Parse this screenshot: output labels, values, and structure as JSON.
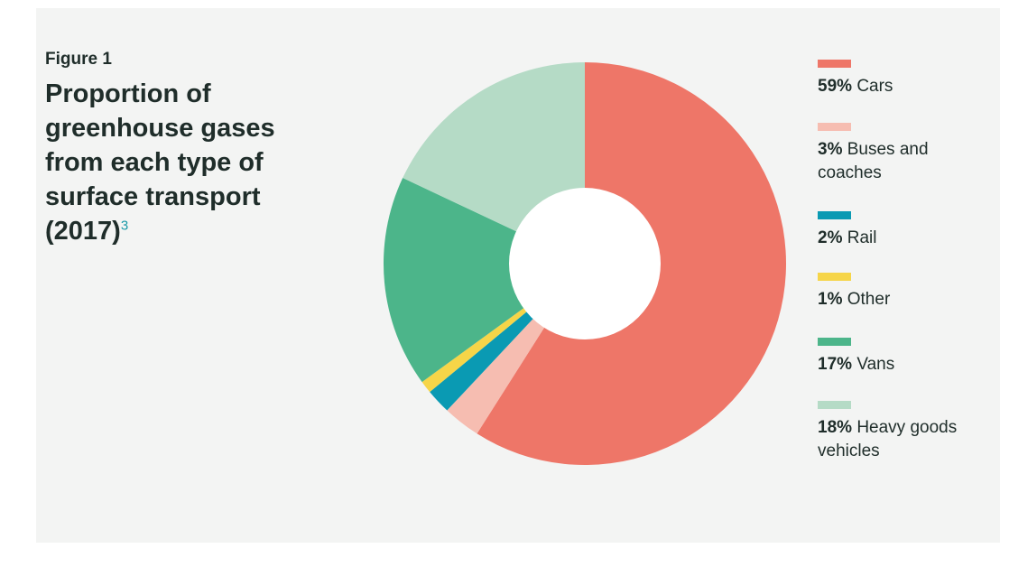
{
  "figure": {
    "label": "Figure 1",
    "title": "Proportion of greenhouse gases from each type of surface transport (2017)",
    "footnote": "3"
  },
  "colors": {
    "background": "#f3f4f3",
    "cars": "#ee7668",
    "buses": "#f6bdb1",
    "rail": "#0a9ab3",
    "other": "#f6d548",
    "vans": "#4cb58a",
    "hgv": "#b5dbc6"
  },
  "chart_data": {
    "type": "pie",
    "donut": true,
    "title": "Proportion of greenhouse gases from each type of surface transport (2017)",
    "categories": [
      "Cars",
      "Buses and coaches",
      "Rail",
      "Other",
      "Vans",
      "Heavy goods vehicles"
    ],
    "values": [
      59,
      3,
      2,
      1,
      17,
      18
    ],
    "unit": "%",
    "legend_position": "right"
  },
  "legend": {
    "items": [
      {
        "pct": "59%",
        "name": "Cars",
        "color": "#ee7668"
      },
      {
        "pct": "3%",
        "name": "Buses and coaches",
        "color": "#f6bdb1"
      },
      {
        "pct": "2%",
        "name": "Rail",
        "color": "#0a9ab3"
      },
      {
        "pct": "1%",
        "name": "Other",
        "color": "#f6d548"
      },
      {
        "pct": "17%",
        "name": "Vans",
        "color": "#4cb58a"
      },
      {
        "pct": "18%",
        "name": "Heavy goods vehicles",
        "color": "#b5dbc6"
      }
    ]
  }
}
